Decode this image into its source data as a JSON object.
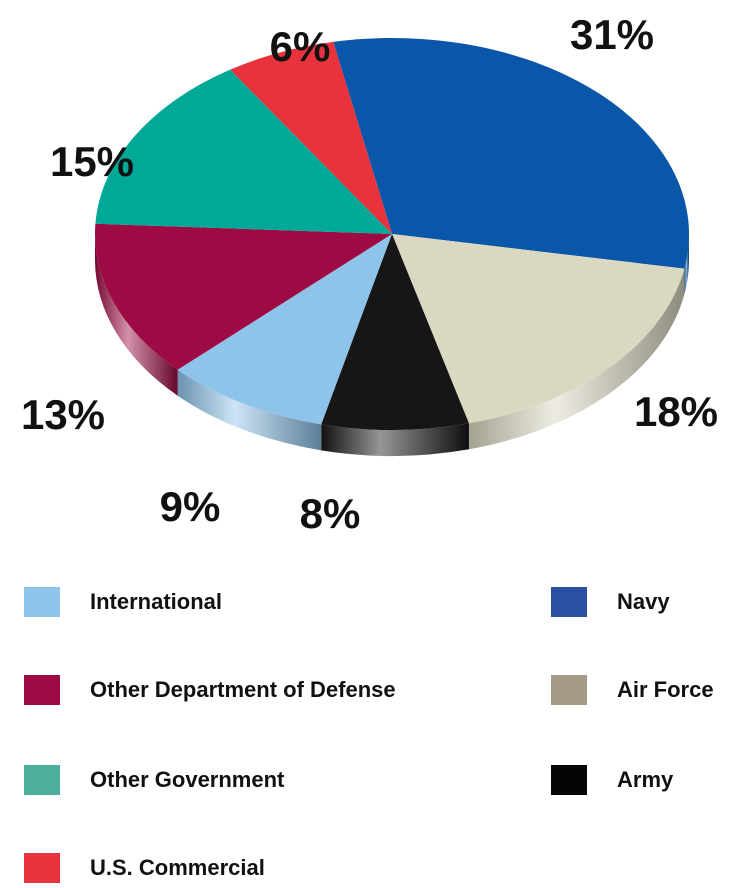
{
  "chart_data": {
    "type": "pie",
    "title": "",
    "slices": [
      {
        "label": "Navy",
        "value": 31,
        "display": "31%",
        "color": "#0a56a8"
      },
      {
        "label": "Air Force",
        "value": 18,
        "display": "18%",
        "color": "#dad8c0"
      },
      {
        "label": "Army",
        "value": 8,
        "display": "8%",
        "color": "#161616"
      },
      {
        "label": "International",
        "value": 9,
        "display": "9%",
        "color": "#8ec4ea"
      },
      {
        "label": "Other Department of Defense",
        "value": 13,
        "display": "13%",
        "color": "#9e0a44"
      },
      {
        "label": "Other Government",
        "value": 15,
        "display": "15%",
        "color": "#00a898"
      },
      {
        "label": "U.S. Commercial",
        "value": 6,
        "display": "6%",
        "color": "#e8323c"
      }
    ],
    "legend": {
      "placement": "bottom",
      "items": [
        {
          "label": "International",
          "color": "#8ec4ea"
        },
        {
          "label": "Navy",
          "color": "#2a4fa3"
        },
        {
          "label": "Other Department of Defense",
          "color": "#9e0a44"
        },
        {
          "label": "Air Force",
          "color": "#a49a88"
        },
        {
          "label": "Other Government",
          "color": "#4caf9e"
        },
        {
          "label": "Army",
          "color": "#050505"
        },
        {
          "label": "U.S. Commercial",
          "color": "#e8323c"
        }
      ]
    }
  }
}
